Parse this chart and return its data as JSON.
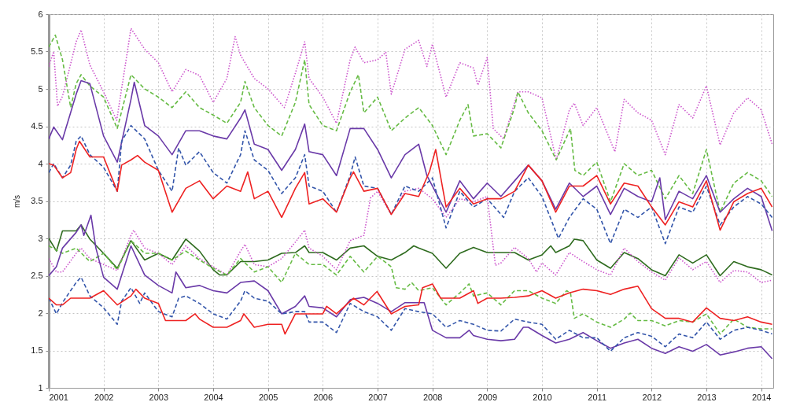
{
  "chart_data": {
    "type": "line",
    "ylabel": "m/s",
    "xlim": [
      2001,
      2014.22
    ],
    "ylim": [
      1,
      6
    ],
    "xticks": [
      2001,
      2002,
      2003,
      2004,
      2005,
      2006,
      2007,
      2008,
      2009,
      2010,
      2011,
      2012,
      2013,
      2014
    ],
    "yticks": [
      1,
      1.5,
      2,
      2.5,
      3,
      3.5,
      4,
      4.5,
      5,
      5.5,
      6
    ],
    "grid": true,
    "series": [
      {
        "color": "#2e6b1e",
        "line_style": "solid",
        "x": [
          2001,
          2001.14,
          2001.25,
          2001.5,
          2001.59,
          2001.75,
          2002,
          2002.25,
          2002.5,
          2002.75,
          2003,
          2003.25,
          2003.5,
          2003.75,
          2004,
          2004.12,
          2004.25,
          2004.5,
          2004.75,
          2005,
          2005.25,
          2005.5,
          2005.67,
          2005.75,
          2006,
          2006.25,
          2006.5,
          2006.75,
          2007,
          2007.25,
          2007.5,
          2007.66,
          2007.75,
          2008,
          2008.25,
          2008.5,
          2008.75,
          2009,
          2009.25,
          2009.5,
          2009.75,
          2010,
          2010.16,
          2010.25,
          2010.5,
          2010.59,
          2010.75,
          2011,
          2011.25,
          2011.5,
          2011.75,
          2012,
          2012.25,
          2012.5,
          2012.75,
          2013,
          2013.25,
          2013.5,
          2013.75,
          2014,
          2014.2
        ],
        "values": [
          3.0,
          2.83,
          3.1,
          3.1,
          3.18,
          2.99,
          2.8,
          2.6,
          2.97,
          2.71,
          2.8,
          2.71,
          2.99,
          2.83,
          2.58,
          2.51,
          2.51,
          2.69,
          2.69,
          2.71,
          2.8,
          2.81,
          2.9,
          2.81,
          2.81,
          2.71,
          2.87,
          2.9,
          2.76,
          2.71,
          2.81,
          2.9,
          2.87,
          2.8,
          2.6,
          2.8,
          2.88,
          2.81,
          2.81,
          2.81,
          2.71,
          2.78,
          2.9,
          2.81,
          2.9,
          2.99,
          2.97,
          2.71,
          2.6,
          2.81,
          2.73,
          2.58,
          2.5,
          2.78,
          2.67,
          2.78,
          2.5,
          2.69,
          2.62,
          2.58,
          2.51
        ]
      },
      {
        "color": "#cc55cc",
        "line_style": "dotted",
        "x": [
          2001,
          2001.14,
          2001.25,
          2001.5,
          2001.59,
          2001.75,
          2002,
          2002.25,
          2002.5,
          2002.55,
          2002.75,
          2003,
          2003.25,
          2003.5,
          2003.75,
          2004,
          2004.25,
          2004.5,
          2004.58,
          2004.75,
          2005,
          2005.25,
          2005.5,
          2005.67,
          2005.75,
          2006,
          2006.25,
          2006.5,
          2006.75,
          2006.87,
          2007,
          2007.25,
          2007.5,
          2007.75,
          2008,
          2008.25,
          2008.5,
          2008.75,
          2009,
          2009.15,
          2009.25,
          2009.5,
          2009.75,
          2009.9,
          2010,
          2010.25,
          2010.5,
          2010.75,
          2011,
          2011.25,
          2011.5,
          2011.75,
          2012,
          2012.25,
          2012.5,
          2012.75,
          2013,
          2013.25,
          2013.5,
          2013.75,
          2014,
          2014.2
        ],
        "values": [
          2.73,
          2.55,
          2.55,
          2.8,
          2.87,
          2.73,
          2.65,
          2.57,
          3.04,
          3.11,
          2.87,
          2.8,
          2.65,
          2.9,
          2.73,
          2.62,
          2.51,
          2.83,
          2.92,
          2.65,
          2.62,
          2.73,
          2.95,
          3.11,
          2.87,
          2.76,
          2.58,
          2.97,
          3.04,
          3.54,
          3.63,
          3.32,
          3.63,
          3.67,
          3.53,
          3.28,
          3.53,
          3.49,
          3.56,
          2.64,
          2.67,
          2.88,
          2.73,
          2.55,
          2.67,
          2.51,
          2.81,
          2.69,
          2.58,
          2.51,
          2.87,
          2.69,
          2.55,
          2.44,
          2.74,
          2.58,
          2.69,
          2.41,
          2.57,
          2.55,
          2.41,
          2.44
        ]
      },
      {
        "color": "#66bb44",
        "line_style": "dashed",
        "x": [
          2001,
          2001.25,
          2001.5,
          2001.75,
          2002,
          2002.25,
          2002.5,
          2002.75,
          2003,
          2003.25,
          2003.5,
          2003.75,
          2004,
          2004.25,
          2004.5,
          2004.75,
          2005,
          2005.25,
          2005.5,
          2005.75,
          2006,
          2006.25,
          2006.5,
          2006.75,
          2007,
          2007.25,
          2007.34,
          2007.5,
          2007.62,
          2007.75,
          2008,
          2008.25,
          2008.5,
          2008.67,
          2008.75,
          2009,
          2009.25,
          2009.5,
          2009.75,
          2010,
          2010.25,
          2010.45,
          2010.52,
          2010.59,
          2010.75,
          2011,
          2011.25,
          2011.5,
          2011.61,
          2011.75,
          2012,
          2012.25,
          2012.5,
          2012.75,
          2013,
          2013.25,
          2013.5,
          2013.75,
          2014,
          2014.2
        ],
        "values": [
          2.9,
          2.8,
          2.87,
          2.69,
          2.8,
          2.58,
          2.97,
          2.8,
          2.8,
          2.71,
          2.83,
          2.71,
          2.6,
          2.51,
          2.73,
          2.55,
          2.62,
          2.41,
          2.8,
          2.65,
          2.65,
          2.51,
          2.76,
          2.55,
          2.76,
          2.62,
          2.34,
          2.32,
          2.41,
          2.3,
          2.34,
          2.11,
          2.27,
          2.39,
          2.23,
          2.27,
          2.11,
          2.3,
          2.3,
          2.2,
          2.13,
          2.3,
          2.27,
          1.93,
          1.99,
          1.88,
          1.81,
          1.92,
          2.0,
          1.9,
          1.9,
          1.83,
          1.9,
          1.88,
          1.99,
          1.72,
          1.92,
          1.81,
          1.79,
          1.79
        ]
      },
      {
        "color": "#6a3aa8",
        "line_style": "solid",
        "x": [
          2001,
          2001.14,
          2001.25,
          2001.5,
          2001.59,
          2001.64,
          2001.77,
          2001.86,
          2002,
          2002.25,
          2002.5,
          2002.75,
          2003,
          2003.25,
          2003.32,
          2003.5,
          2003.75,
          2004,
          2004.25,
          2004.5,
          2004.75,
          2005,
          2005.25,
          2005.5,
          2005.67,
          2005.75,
          2006,
          2006.25,
          2006.5,
          2006.75,
          2007,
          2007.25,
          2007.5,
          2007.85,
          2008,
          2008.25,
          2008.5,
          2008.67,
          2008.75,
          2009,
          2009.25,
          2009.5,
          2009.66,
          2009.75,
          2010,
          2010.25,
          2010.5,
          2010.75,
          2011,
          2011.25,
          2011.5,
          2011.75,
          2012,
          2012.25,
          2012.5,
          2012.75,
          2013,
          2013.25,
          2013.5,
          2013.75,
          2014,
          2014.2
        ],
        "values": [
          2.5,
          2.62,
          2.87,
          3.08,
          3.18,
          3.04,
          3.31,
          2.87,
          2.48,
          2.32,
          2.9,
          2.51,
          2.37,
          2.27,
          2.55,
          2.34,
          2.37,
          2.3,
          2.27,
          2.41,
          2.43,
          2.3,
          1.99,
          2.09,
          2.23,
          2.09,
          2.07,
          1.95,
          2.18,
          2.21,
          2.13,
          2.02,
          2.14,
          2.14,
          1.77,
          1.67,
          1.67,
          1.77,
          1.7,
          1.65,
          1.63,
          1.65,
          1.81,
          1.81,
          1.7,
          1.6,
          1.65,
          1.74,
          1.63,
          1.53,
          1.6,
          1.65,
          1.53,
          1.46,
          1.55,
          1.49,
          1.58,
          1.44,
          1.48,
          1.53,
          1.55,
          1.39
        ]
      },
      {
        "color": "#3355aa",
        "line_style": "dashed",
        "x": [
          2001,
          2001.14,
          2001.25,
          2001.5,
          2001.59,
          2001.75,
          2002,
          2002.25,
          2002.33,
          2002.5,
          2002.66,
          2002.75,
          2003,
          2003.25,
          2003.37,
          2003.5,
          2003.75,
          2004,
          2004.25,
          2004.5,
          2004.58,
          2004.75,
          2005,
          2005.25,
          2005.5,
          2005.67,
          2005.75,
          2006,
          2006.25,
          2006.5,
          2006.75,
          2007,
          2007.25,
          2007.5,
          2007.75,
          2008,
          2008.25,
          2008.5,
          2008.75,
          2009,
          2009.25,
          2009.5,
          2009.75,
          2010,
          2010.25,
          2010.5,
          2010.75,
          2011,
          2011.25,
          2011.5,
          2011.75,
          2012,
          2012.25,
          2012.5,
          2012.75,
          2013,
          2013.25,
          2013.5,
          2013.75,
          2014,
          2014.2
        ],
        "values": [
          2.2,
          1.99,
          2.14,
          2.41,
          2.48,
          2.23,
          2.07,
          1.85,
          2.16,
          2.34,
          2.13,
          2.27,
          2.02,
          1.95,
          2.2,
          2.23,
          2.13,
          1.99,
          1.92,
          2.16,
          2.3,
          2.2,
          2.16,
          1.99,
          2.02,
          2.02,
          1.88,
          1.88,
          1.74,
          2.13,
          2.02,
          1.95,
          1.77,
          2.06,
          2.02,
          1.99,
          1.81,
          1.9,
          1.85,
          1.77,
          1.76,
          1.92,
          1.88,
          1.85,
          1.65,
          1.77,
          1.67,
          1.67,
          1.49,
          1.67,
          1.74,
          1.69,
          1.55,
          1.72,
          1.67,
          1.88,
          1.65,
          1.77,
          1.81,
          1.77,
          1.72
        ]
      },
      {
        "color": "#ee2222",
        "line_style": "solid",
        "x": [
          2001,
          2001.14,
          2001.25,
          2001.4,
          2001.75,
          2002,
          2002.25,
          2002.5,
          2002.59,
          2002.75,
          2003,
          2003.13,
          2003.5,
          2003.67,
          2003.75,
          2004,
          2004.25,
          2004.5,
          2004.56,
          2004.75,
          2005,
          2005.25,
          2005.31,
          2005.5,
          2005.75,
          2006,
          2006.07,
          2006.25,
          2006.5,
          2006.56,
          2006.75,
          2006.99,
          2007.25,
          2007.5,
          2007.75,
          2007.82,
          2008,
          2008.15,
          2008.5,
          2008.75,
          2008.83,
          2009,
          2009.25,
          2009.5,
          2009.75,
          2010,
          2010.25,
          2010.5,
          2010.75,
          2011,
          2011.25,
          2011.5,
          2011.75,
          2012,
          2012.25,
          2012.5,
          2012.75,
          2013,
          2013.25,
          2013.5,
          2013.75,
          2014,
          2014.2
        ],
        "values": [
          2.2,
          2.11,
          2.11,
          2.2,
          2.2,
          2.3,
          2.11,
          2.23,
          2.32,
          2.2,
          2.13,
          1.9,
          1.9,
          1.99,
          1.92,
          1.81,
          1.81,
          1.9,
          1.99,
          1.81,
          1.85,
          1.85,
          1.72,
          1.99,
          1.99,
          1.99,
          2.09,
          1.99,
          2.16,
          2.2,
          2.11,
          2.29,
          1.99,
          2.09,
          2.11,
          2.34,
          2.39,
          2.2,
          2.2,
          2.3,
          2.13,
          2.2,
          2.2,
          2.21,
          2.23,
          2.3,
          2.2,
          2.27,
          2.32,
          2.3,
          2.25,
          2.32,
          2.36,
          2.06,
          1.93,
          1.93,
          1.88,
          2.07,
          1.93,
          1.9,
          1.95,
          1.88,
          1.85
        ]
      },
      {
        "color": "#cc55cc",
        "line_style": "dotted",
        "x": [
          2001,
          2001.09,
          2001.16,
          2001.25,
          2001.5,
          2001.59,
          2001.75,
          2002,
          2002.24,
          2002.5,
          2002.75,
          2003,
          2003.25,
          2003.5,
          2003.75,
          2004,
          2004.25,
          2004.4,
          2004.5,
          2004.75,
          2005,
          2005.3,
          2005.5,
          2005.67,
          2005.75,
          2006,
          2006.25,
          2006.5,
          2006.59,
          2006.75,
          2007,
          2007.15,
          2007.25,
          2007.5,
          2007.75,
          2007.9,
          2008,
          2008.25,
          2008.5,
          2008.75,
          2008.83,
          2009,
          2009.11,
          2009.3,
          2009.56,
          2009.75,
          2010,
          2010.26,
          2010.5,
          2010.59,
          2010.75,
          2011,
          2011.33,
          2011.5,
          2011.75,
          2012,
          2012.25,
          2012.5,
          2012.75,
          2013,
          2013.25,
          2013.5,
          2013.75,
          2014,
          2014.2
        ],
        "values": [
          5.3,
          5.5,
          4.77,
          4.9,
          5.63,
          5.79,
          5.32,
          4.96,
          4.58,
          5.81,
          5.53,
          5.35,
          4.96,
          5.26,
          5.18,
          4.82,
          5.14,
          5.7,
          5.45,
          5.14,
          5.0,
          4.75,
          5.21,
          5.63,
          5.14,
          4.89,
          4.54,
          5.39,
          5.56,
          5.35,
          5.39,
          5.49,
          4.93,
          5.53,
          5.65,
          5.3,
          5.6,
          4.89,
          5.35,
          5.28,
          5.05,
          5.42,
          4.47,
          4.33,
          4.96,
          4.96,
          4.88,
          4.05,
          4.72,
          4.81,
          4.51,
          4.75,
          4.16,
          4.86,
          4.68,
          4.58,
          4.12,
          4.79,
          4.61,
          5.04,
          4.25,
          4.68,
          4.88,
          4.72,
          4.26
        ]
      },
      {
        "color": "#66bb44",
        "line_style": "dashed",
        "x": [
          2001,
          2001.12,
          2001.25,
          2001.4,
          2001.5,
          2001.59,
          2001.75,
          2002,
          2002.25,
          2002.5,
          2002.75,
          2003,
          2003.25,
          2003.5,
          2003.75,
          2004,
          2004.25,
          2004.5,
          2004.58,
          2004.75,
          2005,
          2005.25,
          2005.5,
          2005.67,
          2005.75,
          2006,
          2006.25,
          2006.5,
          2006.65,
          2006.75,
          2007,
          2007.25,
          2007.5,
          2007.75,
          2008,
          2008.25,
          2008.5,
          2008.65,
          2008.75,
          2009,
          2009.25,
          2009.5,
          2009.56,
          2009.75,
          2010,
          2010.26,
          2010.52,
          2010.6,
          2010.75,
          2011,
          2011.25,
          2011.5,
          2011.75,
          2012,
          2012.25,
          2012.5,
          2012.75,
          2013,
          2013.25,
          2013.5,
          2013.75,
          2014,
          2014.2
        ],
        "values": [
          5.56,
          5.72,
          5.39,
          4.75,
          5.07,
          5.19,
          5.04,
          4.89,
          4.47,
          5.19,
          5.0,
          4.89,
          4.75,
          4.96,
          4.75,
          4.65,
          4.54,
          4.82,
          5.1,
          4.75,
          4.51,
          4.37,
          4.82,
          5.39,
          4.79,
          4.51,
          4.44,
          4.96,
          5.19,
          4.68,
          4.89,
          4.44,
          4.61,
          4.75,
          4.51,
          4.12,
          4.58,
          4.79,
          4.37,
          4.4,
          4.21,
          4.75,
          4.96,
          4.68,
          4.44,
          4.05,
          4.47,
          3.91,
          3.84,
          4.02,
          3.49,
          4.0,
          3.84,
          3.91,
          3.53,
          3.84,
          3.6,
          4.19,
          3.35,
          3.74,
          3.88,
          3.77,
          3.56
        ]
      },
      {
        "color": "#6a3aa8",
        "line_style": "solid",
        "x": [
          2001,
          2001.09,
          2001.25,
          2001.5,
          2001.59,
          2001.75,
          2002,
          2002.25,
          2002.5,
          2002.56,
          2002.75,
          2003,
          2003.25,
          2003.5,
          2003.75,
          2004,
          2004.25,
          2004.5,
          2004.58,
          2004.75,
          2005,
          2005.25,
          2005.5,
          2005.67,
          2005.75,
          2006,
          2006.25,
          2006.5,
          2006.75,
          2007,
          2007.25,
          2007.5,
          2007.75,
          2007.9,
          2008.25,
          2008.5,
          2008.75,
          2009,
          2009.25,
          2009.5,
          2009.75,
          2010,
          2010.25,
          2010.5,
          2010.75,
          2011,
          2011.25,
          2011.5,
          2011.75,
          2012,
          2012.15,
          2012.25,
          2012.5,
          2012.75,
          2013,
          2013.25,
          2013.5,
          2013.75,
          2014,
          2014.2
        ],
        "values": [
          4.33,
          4.49,
          4.32,
          4.93,
          5.11,
          5.07,
          4.37,
          4.02,
          4.86,
          5.09,
          4.51,
          4.37,
          4.12,
          4.44,
          4.44,
          4.37,
          4.33,
          4.61,
          4.72,
          4.26,
          4.19,
          3.91,
          4.19,
          4.53,
          4.16,
          4.12,
          3.84,
          4.47,
          4.47,
          4.19,
          3.81,
          4.12,
          4.26,
          3.84,
          3.35,
          3.77,
          3.53,
          3.74,
          3.56,
          3.77,
          3.98,
          3.77,
          3.39,
          3.74,
          3.56,
          3.7,
          3.32,
          3.67,
          3.56,
          3.49,
          3.81,
          3.25,
          3.63,
          3.53,
          3.84,
          3.35,
          3.53,
          3.67,
          3.56,
          3.1
        ]
      },
      {
        "color": "#3355aa",
        "line_style": "dashed",
        "x": [
          2001,
          2001.09,
          2001.25,
          2001.4,
          2001.5,
          2001.59,
          2001.75,
          2002,
          2002.25,
          2002.33,
          2002.5,
          2002.75,
          2003,
          2003.25,
          2003.37,
          2003.5,
          2003.75,
          2004,
          2004.25,
          2004.5,
          2004.58,
          2004.75,
          2005,
          2005.25,
          2005.5,
          2005.67,
          2005.75,
          2006,
          2006.25,
          2006.5,
          2006.59,
          2006.75,
          2007,
          2007.25,
          2007.5,
          2007.75,
          2008,
          2008.25,
          2008.5,
          2008.75,
          2009,
          2009.3,
          2009.5,
          2009.75,
          2010,
          2010.3,
          2010.5,
          2010.75,
          2011,
          2011.25,
          2011.5,
          2011.75,
          2012,
          2012.25,
          2012.5,
          2012.75,
          2013,
          2013.25,
          2013.5,
          2013.75,
          2014,
          2014.2
        ],
        "values": [
          3.88,
          4.0,
          3.81,
          3.98,
          4.3,
          4.37,
          4.12,
          3.95,
          3.63,
          4.3,
          4.51,
          4.33,
          3.91,
          3.63,
          4.21,
          3.98,
          4.16,
          3.88,
          3.74,
          4.12,
          4.44,
          4.05,
          3.91,
          3.6,
          3.81,
          4.12,
          3.7,
          3.63,
          3.35,
          3.84,
          4.09,
          3.7,
          3.67,
          3.32,
          3.7,
          3.63,
          3.81,
          3.14,
          3.63,
          3.42,
          3.53,
          3.28,
          3.63,
          3.81,
          3.56,
          3.0,
          3.28,
          3.53,
          3.39,
          2.93,
          3.39,
          3.28,
          3.42,
          2.93,
          3.42,
          3.35,
          3.7,
          3.18,
          3.42,
          3.56,
          3.46,
          3.28
        ]
      },
      {
        "color": "#ee2222",
        "line_style": "solid",
        "x": [
          2001,
          2001.09,
          2001.25,
          2001.4,
          2001.5,
          2001.56,
          2001.75,
          2002,
          2002.25,
          2002.33,
          2002.5,
          2002.62,
          2002.75,
          2003,
          2003.25,
          2003.5,
          2003.75,
          2004,
          2004.25,
          2004.5,
          2004.63,
          2004.75,
          2005,
          2005.25,
          2005.5,
          2005.67,
          2005.75,
          2006,
          2006.25,
          2006.5,
          2006.56,
          2006.75,
          2007,
          2007.25,
          2007.5,
          2007.75,
          2007.95,
          2008.06,
          2008.25,
          2008.5,
          2008.75,
          2009,
          2009.25,
          2009.5,
          2009.75,
          2010,
          2010.25,
          2010.5,
          2010.75,
          2011,
          2011.25,
          2011.5,
          2011.75,
          2012,
          2012.25,
          2012.5,
          2012.75,
          2013,
          2013.25,
          2013.5,
          2013.75,
          2014,
          2014.2
        ],
        "values": [
          4.0,
          3.98,
          3.81,
          3.88,
          4.19,
          4.3,
          4.09,
          4.09,
          3.63,
          3.98,
          4.05,
          4.11,
          4.02,
          3.91,
          3.35,
          3.67,
          3.77,
          3.53,
          3.7,
          3.63,
          3.89,
          3.53,
          3.63,
          3.28,
          3.67,
          3.88,
          3.46,
          3.53,
          3.35,
          3.81,
          3.89,
          3.63,
          3.67,
          3.32,
          3.6,
          3.56,
          3.9,
          4.19,
          3.42,
          3.67,
          3.46,
          3.53,
          3.53,
          3.63,
          3.98,
          3.77,
          3.35,
          3.7,
          3.7,
          3.84,
          3.46,
          3.74,
          3.7,
          3.42,
          3.18,
          3.49,
          3.42,
          3.77,
          3.11,
          3.49,
          3.6,
          3.67,
          3.42
        ]
      }
    ]
  }
}
